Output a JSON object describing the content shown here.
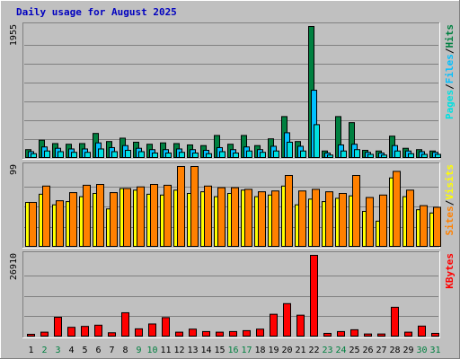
{
  "title": "Daily usage for August 2025",
  "colors": {
    "background": "#c0c0c0",
    "hits": "#008040",
    "files": "#00c0ff",
    "pages": "#00e0e0",
    "visits": "#ffff00",
    "sites": "#ff8000",
    "kbytes": "#ff0000",
    "weekend_label": "#008040",
    "weekday_label": "#000000",
    "title": "#0000c0"
  },
  "chart_data": [
    {
      "type": "bar",
      "title": "Hits / Files / Pages",
      "ylabel_max": "1955",
      "ylim": [
        0,
        1955
      ],
      "legend": [
        "Pages",
        "/",
        "Files",
        "/",
        "Hits"
      ],
      "categories": [
        "1",
        "2",
        "3",
        "4",
        "5",
        "6",
        "7",
        "8",
        "9",
        "10",
        "11",
        "12",
        "13",
        "14",
        "15",
        "16",
        "17",
        "18",
        "19",
        "20",
        "21",
        "22",
        "23",
        "24",
        "25",
        "26",
        "27",
        "28",
        "29",
        "30",
        "31"
      ],
      "series": [
        {
          "name": "Hits",
          "values": [
            130,
            270,
            220,
            210,
            220,
            370,
            250,
            300,
            240,
            210,
            230,
            220,
            200,
            190,
            340,
            210,
            340,
            190,
            290,
            620,
            250,
            1955,
            110,
            620,
            530,
            120,
            110,
            330,
            150,
            130,
            110
          ]
        },
        {
          "name": "Files",
          "values": [
            100,
            170,
            150,
            140,
            140,
            230,
            160,
            190,
            150,
            130,
            130,
            140,
            130,
            120,
            160,
            130,
            170,
            130,
            180,
            380,
            180,
            1010,
            80,
            200,
            210,
            90,
            80,
            190,
            110,
            100,
            90
          ]
        },
        {
          "name": "Pages",
          "values": [
            70,
            110,
            100,
            90,
            90,
            140,
            100,
            120,
            100,
            80,
            80,
            90,
            80,
            70,
            100,
            80,
            110,
            90,
            110,
            240,
            110,
            500,
            50,
            110,
            130,
            60,
            50,
            110,
            70,
            60,
            60
          ]
        }
      ]
    },
    {
      "type": "bar",
      "title": "Visits / Sites",
      "ylabel_max": "99",
      "ylim": [
        0,
        99
      ],
      "legend": [
        "Sites",
        "/",
        "Visits"
      ],
      "categories": [
        "1",
        "2",
        "3",
        "4",
        "5",
        "6",
        "7",
        "8",
        "9",
        "10",
        "11",
        "12",
        "13",
        "14",
        "15",
        "16",
        "17",
        "18",
        "19",
        "20",
        "21",
        "22",
        "23",
        "24",
        "25",
        "26",
        "27",
        "28",
        "29",
        "30",
        "31"
      ],
      "series": [
        {
          "name": "Visits",
          "values": [
            55,
            65,
            52,
            56,
            62,
            66,
            47,
            72,
            70,
            65,
            64,
            70,
            66,
            68,
            62,
            66,
            70,
            62,
            64,
            75,
            52,
            59,
            56,
            60,
            63,
            44,
            32,
            85,
            62,
            46,
            42
          ]
        },
        {
          "name": "Sites",
          "values": [
            55,
            75,
            57,
            67,
            76,
            77,
            67,
            72,
            74,
            77,
            76,
            99,
            99,
            75,
            73,
            73,
            71,
            68,
            69,
            88,
            69,
            71,
            68,
            66,
            88,
            61,
            64,
            93,
            70,
            51,
            49
          ]
        }
      ]
    },
    {
      "type": "bar",
      "title": "KBytes",
      "ylabel_max": "26910",
      "ylim": [
        0,
        26910
      ],
      "legend": [
        "KBytes"
      ],
      "categories": [
        "1",
        "2",
        "3",
        "4",
        "5",
        "6",
        "7",
        "8",
        "9",
        "10",
        "11",
        "12",
        "13",
        "14",
        "15",
        "16",
        "17",
        "18",
        "19",
        "20",
        "21",
        "22",
        "23",
        "24",
        "25",
        "26",
        "27",
        "28",
        "29",
        "30",
        "31"
      ],
      "series": [
        {
          "name": "KBytes",
          "values": [
            900,
            1600,
            6500,
            3200,
            3500,
            3900,
            1400,
            8000,
            2700,
            4300,
            6400,
            1600,
            2600,
            1800,
            1600,
            1800,
            2100,
            2600,
            7500,
            11000,
            7200,
            26910,
            1200,
            1800,
            2400,
            1000,
            1000,
            9800,
            1600,
            3600,
            1200
          ]
        }
      ]
    }
  ],
  "weekend_days": [
    2,
    3,
    9,
    10,
    16,
    17,
    23,
    24,
    30,
    31
  ]
}
